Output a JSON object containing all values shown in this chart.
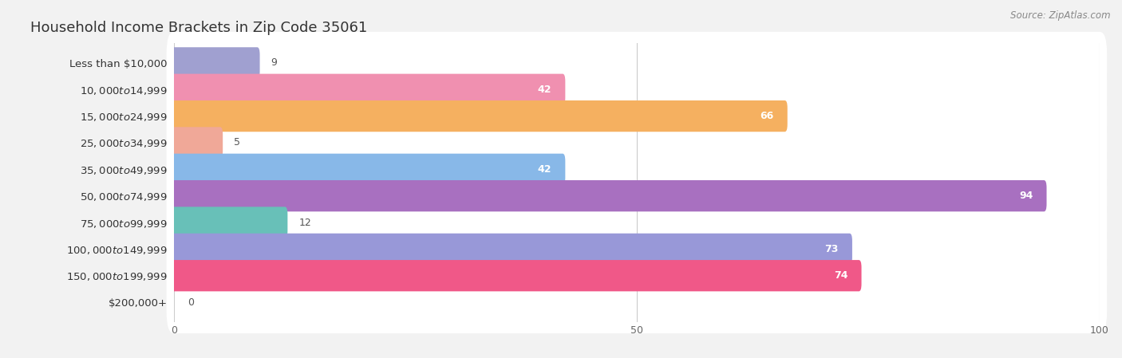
{
  "title": "Household Income Brackets in Zip Code 35061",
  "source": "Source: ZipAtlas.com",
  "categories": [
    "Less than $10,000",
    "$10,000 to $14,999",
    "$15,000 to $24,999",
    "$25,000 to $34,999",
    "$35,000 to $49,999",
    "$50,000 to $74,999",
    "$75,000 to $99,999",
    "$100,000 to $149,999",
    "$150,000 to $199,999",
    "$200,000+"
  ],
  "values": [
    9,
    42,
    66,
    5,
    42,
    94,
    12,
    73,
    74,
    0
  ],
  "bar_colors": [
    "#a0a0d0",
    "#f090b0",
    "#f5b060",
    "#f0a898",
    "#88b8e8",
    "#a870c0",
    "#68c0b8",
    "#9898d8",
    "#f05888",
    "#f0d090"
  ],
  "xlim": [
    0,
    100
  ],
  "xticks": [
    0,
    50,
    100
  ],
  "bg_color": "#f2f2f2",
  "row_bg_color": "#ffffff",
  "bar_height": 0.62,
  "label_fontsize": 9.5,
  "value_fontsize": 9,
  "title_fontsize": 13,
  "source_fontsize": 8.5
}
